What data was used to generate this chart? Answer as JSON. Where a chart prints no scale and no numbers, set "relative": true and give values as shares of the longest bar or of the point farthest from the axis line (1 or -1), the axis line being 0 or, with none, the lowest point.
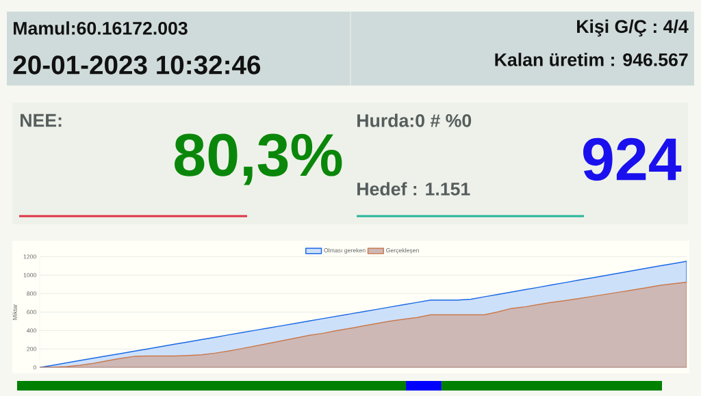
{
  "chart_data": [
    {
      "type": "other",
      "annotations": [
        "Mamul:60.16172.003",
        "20-01-2023 10:32:46",
        "Kişi G/Ç : 4/4",
        "Kalan üretim : 946.567",
        "NEE:",
        "80,3%",
        "Hurda:0 # %0",
        "Hedef : 1.151",
        "924"
      ]
    },
    {
      "type": "area",
      "ylabel": "Miktar",
      "categories": [
        null,
        null,
        null,
        null,
        null,
        null,
        null,
        null,
        null,
        null,
        null,
        null,
        null,
        null,
        null,
        null,
        null,
        null,
        null,
        null,
        null,
        null,
        null,
        null,
        null,
        null,
        null,
        null,
        null,
        null,
        null,
        null,
        null,
        null,
        null,
        null,
        null,
        null,
        null,
        null,
        null,
        null,
        null,
        null,
        null,
        null,
        null,
        null,
        null
      ],
      "series": [
        {
          "name": "Olması gereken",
          "color": "#cde0fa",
          "values": [
            0,
            25,
            50,
            76,
            101,
            126,
            151,
            176,
            201,
            227,
            252,
            277,
            302,
            327,
            353,
            378,
            403,
            428,
            453,
            478,
            504,
            529,
            554,
            579,
            604,
            629,
            655,
            680,
            705,
            730,
            730,
            730,
            740,
            766,
            791,
            817,
            843,
            868,
            895,
            920,
            946,
            971,
            997,
            1023,
            1048,
            1074,
            1100,
            1125,
            1151
          ]
        },
        {
          "name": "Gerçekleşen",
          "color": "#cdb8b6",
          "values": [
            0,
            4,
            9,
            25,
            45,
            72,
            98,
            120,
            124,
            124,
            124,
            130,
            138,
            155,
            178,
            205,
            233,
            261,
            290,
            319,
            348,
            370,
            398,
            423,
            451,
            477,
            502,
            522,
            541,
            571,
            571,
            571,
            571,
            571,
            602,
            640,
            657,
            682,
            706,
            725,
            746,
            770,
            793,
            816,
            840,
            864,
            889,
            907,
            925
          ]
        }
      ],
      "ylim": [
        0,
        1200
      ],
      "yticks": [
        0,
        200,
        400,
        600,
        800,
        1000,
        1200
      ],
      "grid": "y",
      "legend": "top",
      "tick_labels": "y"
    },
    {
      "type": "bar",
      "orientation": "horizontal",
      "stacked": true,
      "relative": true,
      "categories": [
        null
      ],
      "series": [
        {
          "color": "#008000",
          "values": [
            0.603
          ]
        },
        {
          "color": "#0000ff",
          "values": [
            0.055
          ]
        },
        {
          "color": "#008000",
          "values": [
            0.342
          ]
        }
      ]
    }
  ]
}
